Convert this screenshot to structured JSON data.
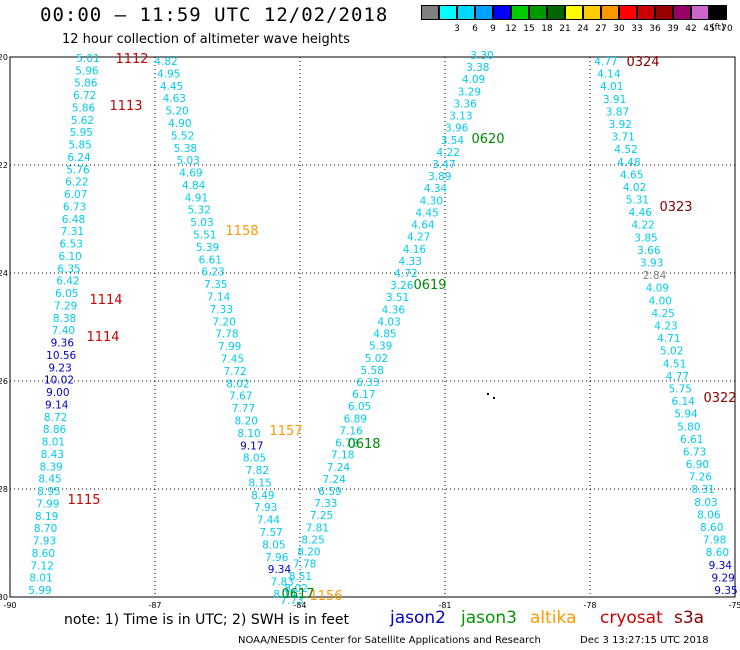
{
  "header": {
    "title": "00:00 — 11:59 UTC 12/02/2018",
    "subtitle": "12 hour collection of altimeter wave heights"
  },
  "colorbar": {
    "unit": "(ft)",
    "items": [
      {
        "label": "",
        "color": "#808080"
      },
      {
        "label": "3",
        "color": "#00ffff"
      },
      {
        "label": "6",
        "color": "#00d8ff"
      },
      {
        "label": "9",
        "color": "#00a0ff"
      },
      {
        "label": "12",
        "color": "#0000ff"
      },
      {
        "label": "15",
        "color": "#00cc00"
      },
      {
        "label": "18",
        "color": "#009900"
      },
      {
        "label": "21",
        "color": "#006600"
      },
      {
        "label": "24",
        "color": "#ffff00"
      },
      {
        "label": "27",
        "color": "#ffcc00"
      },
      {
        "label": "30",
        "color": "#ff9900"
      },
      {
        "label": "33",
        "color": "#ff0000"
      },
      {
        "label": "36",
        "color": "#cc0000"
      },
      {
        "label": "39",
        "color": "#990000"
      },
      {
        "label": "42",
        "color": "#990066"
      },
      {
        "label": "45",
        "color": "#cc66cc"
      },
      {
        "label": "70",
        "color": "#000000"
      }
    ]
  },
  "axes": {
    "lat_ticks": [
      "-20",
      "-22",
      "-24",
      "-26",
      "-28",
      "-30"
    ],
    "lon_ticks": [
      "-90",
      "-87",
      "-84",
      "-81",
      "-78",
      "-75"
    ]
  },
  "colors": {
    "swh_default": "#00ccee",
    "swh_high": "#0000cc",
    "swh_low": "#808080",
    "cryosat": "#cc0000",
    "s3a": "#880000",
    "jason3": "#008800",
    "altika": "#ff9900",
    "jason2": "#0000cc"
  },
  "tracks": [
    {
      "values": [
        "5.01",
        "5.96",
        "5.86",
        "6.72",
        "5.86",
        "5.62",
        "5.95",
        "5.85",
        "6.24",
        "5.76",
        "6.22",
        "6.07",
        "6.73",
        "6.48",
        "7.31",
        "6.53",
        "6.10",
        "6.35",
        "6.42",
        "6.05",
        "7.29",
        "8.38",
        "7.40",
        "9.36",
        "10.56",
        "9.23",
        "10.02",
        "9.00",
        "9.14",
        "8.72",
        "8.86",
        "8.01",
        "8.43",
        "8.39",
        "8.45",
        "8.95",
        "7.99",
        "8.19",
        "8.70",
        "7.93",
        "8.60",
        "7.12",
        "8.01",
        "5.99"
      ]
    },
    {
      "values": [
        "4.82",
        "4.95",
        "4.45",
        "4.63",
        "5.20",
        "4.90",
        "5.52",
        "5.38",
        "5.03",
        "4.69",
        "4.84",
        "4.91",
        "5.32",
        "5.03",
        "5.51",
        "5.39",
        "6.61",
        "6.23",
        "7.35",
        "7.14",
        "7.33",
        "7.20",
        "7.78",
        "7.99",
        "7.45",
        "7.72",
        "8.02",
        "7.67",
        "7.77",
        "8.20",
        "8.10",
        "9.17",
        "8.05",
        "7.82",
        "8.15",
        "8.49",
        "7.93",
        "7.44",
        "7.57",
        "8.05",
        "7.96",
        "9.34",
        "7.83",
        "8.14"
      ]
    },
    {
      "values": [
        "7.73",
        "8.02",
        "8.51",
        "7.78",
        "8.20",
        "8.25",
        "7.81",
        "7.25",
        "7.33",
        "6.59",
        "7.24",
        "7.24",
        "7.18",
        "6.72",
        "7.16",
        "6.89",
        "6.05",
        "6.17",
        "6.33",
        "5.58",
        "5.02",
        "5.39",
        "4.85",
        "4.03",
        "4.36",
        "3.51",
        "3.26",
        "4.72",
        "4.33",
        "4.16",
        "4.27",
        "4.64",
        "4.45",
        "4.30",
        "4.34",
        "3.89",
        "3.47",
        "4.22",
        "3.54",
        "3.96",
        "3.13",
        "3.36",
        "3.29",
        "4.09",
        "3.38",
        "3.30"
      ]
    },
    {
      "values": [
        "4.77",
        "4.14",
        "4.01",
        "3.91",
        "3.87",
        "3.92",
        "3.71",
        "4.52",
        "4.48",
        "4.65",
        "4.02",
        "5.31",
        "4.46",
        "4.22",
        "3.85",
        "3.66",
        "3.93",
        "2.84",
        "4.09",
        "4.00",
        "4.25",
        "4.23",
        "4.71",
        "5.02",
        "4.51",
        "4.77",
        "5.75",
        "6.14",
        "5.94",
        "5.80",
        "6.61",
        "6.73",
        "6.90",
        "7.26",
        "8.31",
        "8.03",
        "8.06",
        "8.60",
        "7.98",
        "8.60",
        "9.34",
        "9.29",
        "9.35"
      ]
    }
  ],
  "pass_labels": [
    {
      "text": "1112",
      "sat": "cryosat"
    },
    {
      "text": "1113",
      "sat": "cryosat"
    },
    {
      "text": "1114",
      "sat": "cryosat"
    },
    {
      "text": "1114",
      "sat": "cryosat"
    },
    {
      "text": "1115",
      "sat": "cryosat"
    },
    {
      "text": "1158",
      "sat": "altika"
    },
    {
      "text": "1157",
      "sat": "altika"
    },
    {
      "text": "1156",
      "sat": "altika"
    },
    {
      "text": "0620",
      "sat": "jason3"
    },
    {
      "text": "0619",
      "sat": "jason3"
    },
    {
      "text": "0618",
      "sat": "jason3"
    },
    {
      "text": "0617",
      "sat": "jason3"
    },
    {
      "text": "0324",
      "sat": "s3a"
    },
    {
      "text": "0323",
      "sat": "s3a"
    },
    {
      "text": "0322",
      "sat": "s3a"
    }
  ],
  "footer": {
    "note": "note: 1) Time is in UTC; 2) SWH is in feet",
    "satellites": [
      {
        "name": "jason2",
        "color": "#0000cc"
      },
      {
        "name": "jason3",
        "color": "#009900"
      },
      {
        "name": "altika",
        "color": "#ff9900"
      },
      {
        "name": "cryosat",
        "color": "#cc0000"
      },
      {
        "name": "s3a",
        "color": "#880000"
      }
    ],
    "credit": "NOAA/NESDIS Center for Satellite Applications and Research",
    "timestamp": "Dec  3 13:27:15 UTC 2018"
  }
}
